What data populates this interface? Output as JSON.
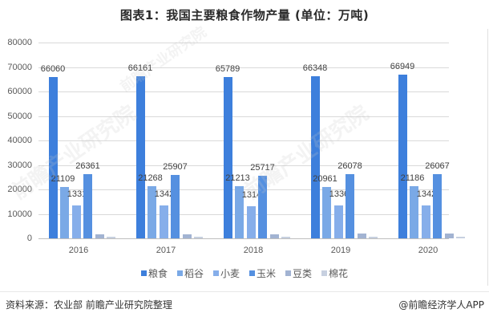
{
  "title": "图表1：我国主要粮食作物产量 (单位：万吨)",
  "footer": {
    "source": "资料来源：农业部 前瞻产业研究院整理",
    "credit": "@前瞻经济学人APP"
  },
  "watermark": "前瞻产业研究院",
  "colors": {
    "粮食": "#3d7fdc",
    "稻谷": "#7aa9e6",
    "小麦": "#86aeea",
    "玉米": "#5590e0",
    "豆类": "#a2b3d2",
    "棉花": "#c7d0e0"
  },
  "chart_data": {
    "type": "bar",
    "title": "图表1：我国主要粮食作物产量 (单位：万吨)",
    "xlabel": "",
    "ylabel": "万吨",
    "ylim": [
      0,
      80000
    ],
    "yticks": [
      0,
      10000,
      20000,
      30000,
      40000,
      50000,
      60000,
      70000,
      80000
    ],
    "grid": true,
    "legend_position": "bottom",
    "categories": [
      "2016",
      "2017",
      "2018",
      "2019",
      "2020"
    ],
    "series": [
      {
        "name": "粮食",
        "values": [
          66060,
          66161,
          65789,
          66348,
          66949
        ],
        "labeled": true
      },
      {
        "name": "稻谷",
        "values": [
          21109,
          21268,
          21213,
          20961,
          21186
        ],
        "labeled": true
      },
      {
        "name": "小麦",
        "values": [
          13319,
          13424,
          13144,
          13360,
          13425
        ],
        "labeled": true
      },
      {
        "name": "玉米",
        "values": [
          26361,
          25907,
          25717,
          26078,
          26067
        ],
        "labeled": true
      },
      {
        "name": "豆类",
        "values": [
          1500,
          1700,
          1650,
          1850,
          1950
        ],
        "labeled": false
      },
      {
        "name": "棉花",
        "values": [
          530,
          560,
          610,
          590,
          590
        ],
        "labeled": false
      }
    ]
  }
}
